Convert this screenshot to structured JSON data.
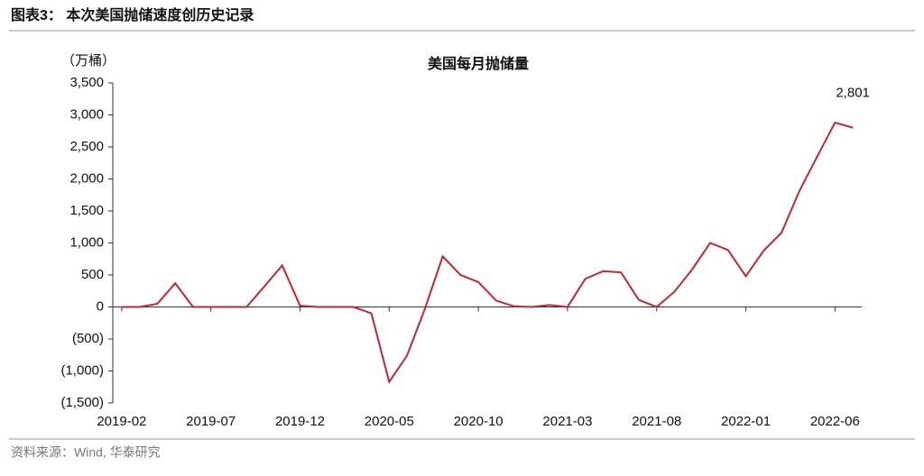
{
  "header": {
    "title": "图表3：  本次美国抛储速度创历史记录"
  },
  "chart_data": {
    "type": "line",
    "title": "美国每月抛储量",
    "y_unit": "（万桶）",
    "categories": [
      "2019-02",
      null,
      null,
      null,
      null,
      "2019-07",
      null,
      null,
      null,
      null,
      "2019-12",
      null,
      null,
      null,
      null,
      "2020-05",
      null,
      null,
      null,
      null,
      "2020-10",
      null,
      null,
      null,
      null,
      "2021-03",
      null,
      null,
      null,
      null,
      "2021-08",
      null,
      null,
      null,
      null,
      "2022-01",
      null,
      null,
      null,
      null,
      "2022-06",
      null
    ],
    "series": [
      {
        "color": "#c0282d",
        "values": [
          0,
          0,
          50,
          370,
          0,
          0,
          0,
          0,
          320,
          650,
          20,
          0,
          0,
          0,
          -100,
          -1170,
          -760,
          -30,
          790,
          500,
          390,
          100,
          10,
          0,
          30,
          0,
          440,
          560,
          540,
          110,
          0,
          240,
          590,
          1000,
          890,
          480,
          880,
          1160,
          1810,
          2350,
          2880,
          2801
        ],
        "value_labels": [
          null,
          null,
          null,
          null,
          null,
          null,
          null,
          null,
          null,
          null,
          null,
          null,
          null,
          null,
          null,
          null,
          null,
          null,
          null,
          null,
          null,
          null,
          null,
          null,
          null,
          null,
          null,
          null,
          null,
          null,
          null,
          null,
          null,
          null,
          null,
          null,
          null,
          null,
          null,
          null,
          null,
          "2,801"
        ]
      }
    ],
    "ylim": [
      -1500,
      3500
    ],
    "yticks": [
      {
        "value": -1500,
        "label": "(1,500)"
      },
      {
        "value": -1000,
        "label": "(1,000)"
      },
      {
        "value": -500,
        "label": "(500)"
      },
      0,
      500,
      {
        "value": 1000,
        "label": "1,000"
      },
      {
        "value": 1500,
        "label": "1,500"
      },
      {
        "value": 2000,
        "label": "2,000"
      },
      {
        "value": 2500,
        "label": "2,500"
      },
      {
        "value": 3000,
        "label": "3,000"
      },
      {
        "value": 3500,
        "label": "3,500"
      }
    ],
    "grid": false
  },
  "footer": {
    "source": "资料来源：Wind, 华泰研究"
  }
}
